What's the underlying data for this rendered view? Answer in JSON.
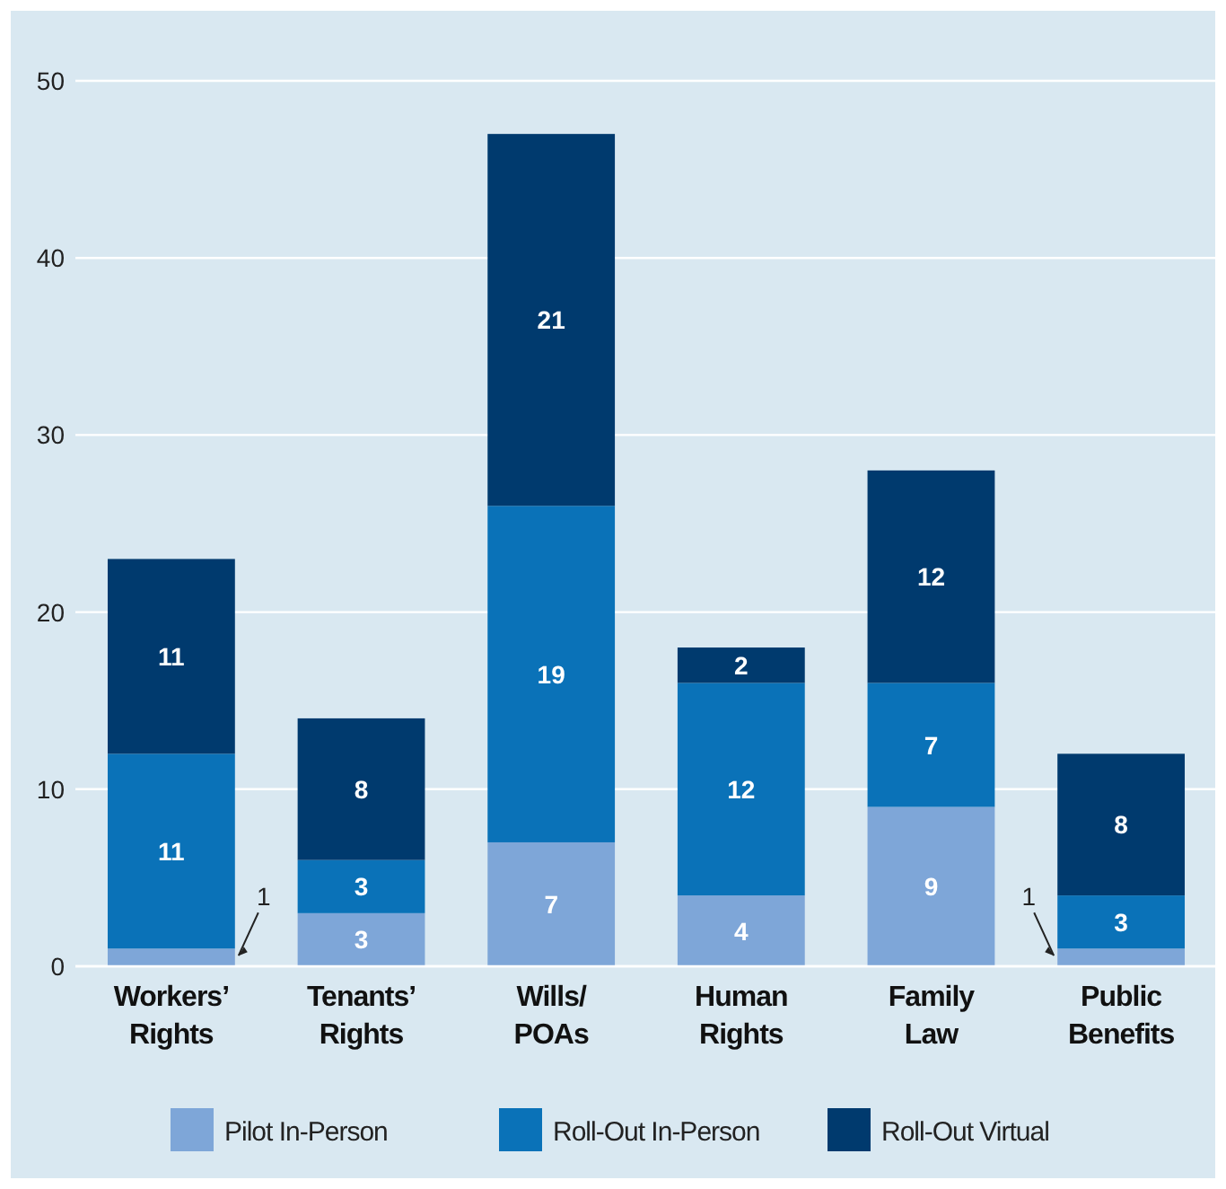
{
  "chart_data": {
    "type": "bar",
    "stacked": true,
    "categories": [
      "Workers’ Rights",
      "Tenants’ Rights",
      "Wills/ POAs",
      "Human Rights",
      "Family Law",
      "Public Benefits"
    ],
    "series": [
      {
        "name": "Pilot In-Person",
        "color": "#7ea6d8",
        "values": [
          1,
          3,
          7,
          4,
          9,
          1
        ]
      },
      {
        "name": "Roll-Out In-Person",
        "color": "#0a72b8",
        "values": [
          11,
          3,
          19,
          12,
          7,
          3
        ]
      },
      {
        "name": "Roll-Out Virtual",
        "color": "#003a6e",
        "values": [
          11,
          8,
          21,
          2,
          12,
          8
        ]
      }
    ],
    "data_labels": true,
    "ylim": [
      0,
      50
    ],
    "yticks": [
      0,
      10,
      20,
      30,
      40,
      50
    ],
    "grid": "y",
    "legend": "bottom"
  }
}
